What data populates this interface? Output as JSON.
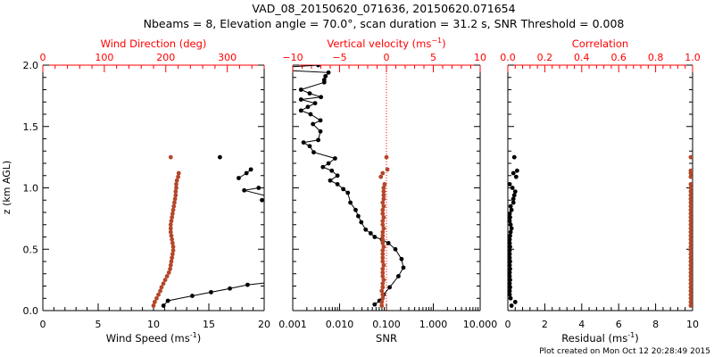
{
  "title": "VAD_08_20150620_071636, 20150620.071654",
  "subtitle": "Nbeams = 8, Elevation angle = 70.0°, scan duration = 31.2 s, SNR Threshold = 0.008",
  "footer": "Plot created on Mon Oct 12 20:28:49 2015",
  "colors": {
    "primary": "#000000",
    "secondary": "#b5472a",
    "axis_secondary": "#ff0000"
  },
  "chart_data": [
    {
      "type": "scatter",
      "name": "wind",
      "ylabel": "z (km AGL)",
      "ylim": [
        0,
        2
      ],
      "yticks": [
        "0.0",
        "0.5",
        "1.0",
        "1.5",
        "2.0"
      ],
      "xlabel": "Wind Speed (ms",
      "xlabel_sup": "-1",
      "xlabel_end": ")",
      "xlim": [
        0,
        20
      ],
      "xticks": [
        "0",
        "5",
        "10",
        "15",
        "20"
      ],
      "top_xlabel": "Wind Direction (deg)",
      "top_xlim": [
        0,
        360
      ],
      "top_xticks": [
        "0",
        "100",
        "200",
        "300"
      ],
      "series": [
        {
          "name": "Wind Speed",
          "axis": "bottom",
          "connected": true,
          "points": [
            [
              0.04,
              10.9
            ],
            [
              0.08,
              11.3
            ],
            [
              0.12,
              13.5
            ],
            [
              0.15,
              15.2
            ],
            [
              0.18,
              16.9
            ],
            [
              0.21,
              18.5
            ],
            [
              0.23,
              20.5
            ],
            null,
            [
              0.9,
              19.8
            ],
            [
              0.93,
              20.4
            ],
            [
              0.98,
              18.2
            ],
            [
              1.0,
              19.5
            ],
            null,
            [
              1.08,
              17.7
            ],
            [
              1.12,
              18.4
            ],
            [
              1.15,
              18.8
            ],
            null,
            [
              1.25,
              16.0
            ]
          ]
        },
        {
          "name": "Wind Direction",
          "axis": "top",
          "connected": false,
          "points": [
            [
              0.04,
              180
            ],
            [
              0.07,
              182
            ],
            [
              0.1,
              185
            ],
            [
              0.13,
              188
            ],
            [
              0.16,
              191
            ],
            [
              0.19,
              193
            ],
            [
              0.22,
              196
            ],
            [
              0.25,
              199
            ],
            [
              0.28,
              202
            ],
            [
              0.31,
              205
            ],
            [
              0.34,
              207
            ],
            [
              0.37,
              208
            ],
            [
              0.4,
              209
            ],
            [
              0.43,
              210
            ],
            [
              0.46,
              211
            ],
            [
              0.49,
              212
            ],
            [
              0.52,
              212
            ],
            [
              0.55,
              211
            ],
            [
              0.58,
              210
            ],
            [
              0.61,
              209
            ],
            [
              0.64,
              208
            ],
            [
              0.67,
              208
            ],
            [
              0.7,
              208
            ],
            [
              0.73,
              209
            ],
            [
              0.76,
              210
            ],
            [
              0.79,
              211
            ],
            [
              0.82,
              212
            ],
            [
              0.85,
              213
            ],
            [
              0.88,
              214
            ],
            [
              0.91,
              215
            ],
            [
              0.94,
              216
            ],
            [
              0.97,
              216
            ],
            [
              1.0,
              217
            ],
            [
              1.03,
              217
            ],
            [
              1.06,
              218
            ],
            [
              1.09,
              220
            ],
            [
              1.12,
              221
            ],
            [
              1.25,
              208
            ]
          ]
        }
      ]
    },
    {
      "type": "scatter",
      "name": "snr",
      "ylim": [
        0,
        2
      ],
      "xlabel": "SNR",
      "xscale": "log",
      "xlim": [
        0.001,
        10
      ],
      "xticks": [
        "0.001",
        "0.010",
        "0.100",
        "1.000",
        "10.000"
      ],
      "top_xlabel": "Vertical velocity (ms",
      "top_xlabel_sup": "-1",
      "top_xlabel_end": ")",
      "top_xlim": [
        -10,
        10
      ],
      "top_xticks": [
        "-10",
        "-5",
        "0",
        "5",
        "10"
      ],
      "series": [
        {
          "name": "SNR",
          "axis": "bottom",
          "connected": true,
          "points": [
            [
              0.05,
              0.056
            ],
            [
              0.08,
              0.071
            ],
            [
              0.13,
              0.087
            ],
            [
              0.19,
              0.117
            ],
            [
              0.28,
              0.18
            ],
            [
              0.35,
              0.23
            ],
            [
              0.42,
              0.21
            ],
            [
              0.5,
              0.155
            ],
            [
              0.55,
              0.11
            ],
            [
              0.58,
              0.08
            ],
            [
              0.6,
              0.056
            ],
            [
              0.63,
              0.046
            ],
            [
              0.66,
              0.036
            ],
            [
              0.72,
              0.029
            ],
            [
              0.77,
              0.025
            ],
            [
              0.82,
              0.022
            ],
            [
              0.88,
              0.017
            ],
            [
              0.96,
              0.015
            ],
            [
              0.99,
              0.012
            ],
            [
              1.03,
              0.009
            ],
            [
              1.06,
              0.0063
            ],
            [
              1.1,
              0.009
            ],
            [
              1.14,
              0.0068
            ],
            [
              1.17,
              0.0044
            ],
            [
              1.2,
              0.0058
            ],
            [
              1.24,
              0.008
            ],
            [
              1.29,
              0.0028
            ],
            [
              1.34,
              0.0023
            ],
            [
              1.37,
              0.0017
            ],
            [
              1.39,
              0.0035
            ],
            [
              1.46,
              0.0039
            ],
            [
              1.52,
              0.0027
            ],
            [
              1.55,
              0.0039
            ],
            [
              1.6,
              0.0024
            ],
            [
              1.63,
              0.0015
            ],
            [
              1.66,
              0.0021
            ],
            [
              1.69,
              0.003
            ],
            [
              1.72,
              0.0015
            ],
            [
              1.74,
              0.004
            ],
            [
              1.77,
              0.0023
            ],
            [
              1.8,
              0.0015
            ],
            [
              1.86,
              0.0047
            ],
            [
              1.88,
              0.0047
            ],
            [
              1.91,
              0.005
            ],
            [
              1.94,
              0.0058
            ],
            [
              1.96,
              0.0005
            ],
            [
              1.98,
              0.0005
            ],
            [
              2.0,
              0.0035
            ]
          ]
        },
        {
          "name": "Vertical velocity",
          "axis": "top",
          "connected": false,
          "points": [
            [
              0.04,
              -0.5
            ],
            [
              0.07,
              -0.5
            ],
            [
              0.1,
              -0.4
            ],
            [
              0.13,
              -0.4
            ],
            [
              0.16,
              -0.5
            ],
            [
              0.19,
              -0.4
            ],
            [
              0.22,
              -0.4
            ],
            [
              0.25,
              -0.3
            ],
            [
              0.28,
              -0.4
            ],
            [
              0.31,
              -0.4
            ],
            [
              0.34,
              -0.4
            ],
            [
              0.37,
              -0.3
            ],
            [
              0.4,
              -0.4
            ],
            [
              0.43,
              -0.4
            ],
            [
              0.46,
              -0.4
            ],
            [
              0.49,
              -0.4
            ],
            [
              0.52,
              -0.3
            ],
            [
              0.55,
              -0.4
            ],
            [
              0.58,
              -0.4
            ],
            [
              0.61,
              -0.4
            ],
            [
              0.64,
              -0.4
            ],
            [
              0.67,
              -0.3
            ],
            [
              0.7,
              -0.4
            ],
            [
              0.73,
              -0.4
            ],
            [
              0.76,
              -0.3
            ],
            [
              0.79,
              -0.4
            ],
            [
              0.82,
              -0.4
            ],
            [
              0.85,
              -0.3
            ],
            [
              0.88,
              -0.4
            ],
            [
              0.91,
              -0.3
            ],
            [
              0.94,
              -0.3
            ],
            [
              0.97,
              -0.3
            ],
            [
              1.0,
              -0.3
            ],
            [
              1.03,
              -0.2
            ],
            [
              1.09,
              -0.6
            ],
            [
              1.12,
              -0.4
            ],
            [
              1.15,
              0.1
            ],
            [
              1.25,
              0.0
            ]
          ]
        }
      ]
    },
    {
      "type": "scatter",
      "name": "residual",
      "ylim": [
        0,
        2
      ],
      "xlabel": "Residual (ms",
      "xlabel_sup": "-1",
      "xlabel_end": ")",
      "xlim": [
        0,
        10
      ],
      "xticks": [
        "0",
        "2",
        "4",
        "6",
        "8",
        "10"
      ],
      "top_xlabel": "Correlation",
      "top_xlim": [
        0,
        1
      ],
      "top_xticks": [
        "0.0",
        "0.2",
        "0.4",
        "0.6",
        "0.8",
        "1.0"
      ],
      "series": [
        {
          "name": "Residual",
          "axis": "bottom",
          "connected": false,
          "points": [
            [
              0.04,
              0.2
            ],
            [
              0.07,
              0.4
            ],
            [
              0.1,
              0.15
            ],
            [
              0.13,
              0.1
            ],
            [
              0.16,
              0.1
            ],
            [
              0.19,
              0.12
            ],
            [
              0.22,
              0.1
            ],
            [
              0.25,
              0.12
            ],
            [
              0.28,
              0.1
            ],
            [
              0.31,
              0.1
            ],
            [
              0.34,
              0.12
            ],
            [
              0.37,
              0.1
            ],
            [
              0.4,
              0.12
            ],
            [
              0.43,
              0.1
            ],
            [
              0.46,
              0.1
            ],
            [
              0.49,
              0.1
            ],
            [
              0.52,
              0.12
            ],
            [
              0.55,
              0.1
            ],
            [
              0.58,
              0.1
            ],
            [
              0.61,
              0.12
            ],
            [
              0.64,
              0.15
            ],
            [
              0.67,
              0.2
            ],
            [
              0.7,
              0.15
            ],
            [
              0.73,
              0.1
            ],
            [
              0.76,
              0.12
            ],
            [
              0.79,
              0.1
            ],
            [
              0.82,
              0.2
            ],
            [
              0.85,
              0.15
            ],
            [
              0.88,
              0.3
            ],
            [
              0.91,
              0.3
            ],
            [
              0.94,
              0.35
            ],
            [
              0.97,
              0.4
            ],
            [
              1.0,
              0.25
            ],
            [
              1.03,
              0.1
            ],
            [
              1.09,
              0.45
            ],
            [
              1.12,
              0.3
            ],
            [
              1.14,
              0.5
            ],
            [
              1.25,
              0.35
            ]
          ]
        },
        {
          "name": "Correlation",
          "axis": "top",
          "connected": false,
          "points": [
            [
              0.04,
              0.99
            ],
            [
              0.07,
              0.99
            ],
            [
              0.1,
              0.99
            ],
            [
              0.13,
              0.99
            ],
            [
              0.16,
              0.99
            ],
            [
              0.19,
              0.99
            ],
            [
              0.22,
              0.99
            ],
            [
              0.25,
              0.99
            ],
            [
              0.28,
              0.99
            ],
            [
              0.31,
              0.99
            ],
            [
              0.34,
              0.99
            ],
            [
              0.37,
              0.99
            ],
            [
              0.4,
              0.99
            ],
            [
              0.43,
              0.99
            ],
            [
              0.46,
              0.99
            ],
            [
              0.49,
              0.99
            ],
            [
              0.52,
              0.99
            ],
            [
              0.55,
              0.99
            ],
            [
              0.58,
              0.99
            ],
            [
              0.61,
              0.99
            ],
            [
              0.64,
              0.99
            ],
            [
              0.67,
              0.99
            ],
            [
              0.7,
              0.99
            ],
            [
              0.73,
              0.99
            ],
            [
              0.76,
              0.99
            ],
            [
              0.79,
              0.99
            ],
            [
              0.82,
              0.99
            ],
            [
              0.85,
              0.99
            ],
            [
              0.88,
              0.99
            ],
            [
              0.91,
              0.99
            ],
            [
              0.94,
              0.99
            ],
            [
              0.97,
              0.99
            ],
            [
              1.0,
              0.99
            ],
            [
              1.03,
              0.99
            ],
            [
              1.09,
              0.99
            ],
            [
              1.12,
              0.99
            ],
            [
              1.14,
              0.99
            ],
            [
              1.25,
              0.99
            ]
          ]
        }
      ]
    }
  ]
}
